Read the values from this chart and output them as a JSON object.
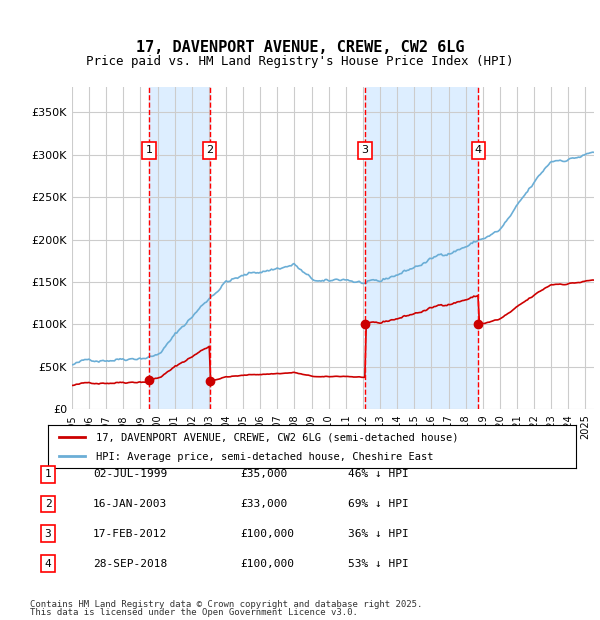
{
  "title": "17, DAVENPORT AVENUE, CREWE, CW2 6LG",
  "subtitle": "Price paid vs. HM Land Registry's House Price Index (HPI)",
  "footer1": "Contains HM Land Registry data © Crown copyright and database right 2025.",
  "footer2": "This data is licensed under the Open Government Licence v3.0.",
  "legend1": "17, DAVENPORT AVENUE, CREWE, CW2 6LG (semi-detached house)",
  "legend2": "HPI: Average price, semi-detached house, Cheshire East",
  "transactions": [
    {
      "num": 1,
      "date": "02-JUL-1999",
      "year": 1999.5,
      "price": 35000,
      "pct": "46% ↓ HPI"
    },
    {
      "num": 2,
      "date": "16-JAN-2003",
      "year": 2003.04,
      "price": 33000,
      "pct": "69% ↓ HPI"
    },
    {
      "num": 3,
      "date": "17-FEB-2012",
      "year": 2012.12,
      "price": 100000,
      "pct": "36% ↓ HPI"
    },
    {
      "num": 4,
      "date": "28-SEP-2018",
      "year": 2018.75,
      "price": 100000,
      "pct": "53% ↓ HPI"
    }
  ],
  "hpi_color": "#6baed6",
  "price_color": "#cc0000",
  "vline_color": "#ff0000",
  "shade_color": "#ddeeff",
  "grid_color": "#cccccc",
  "ylim": [
    0,
    380000
  ],
  "xlim_start": 1995.0,
  "xlim_end": 2025.5,
  "background_color": "#ffffff"
}
